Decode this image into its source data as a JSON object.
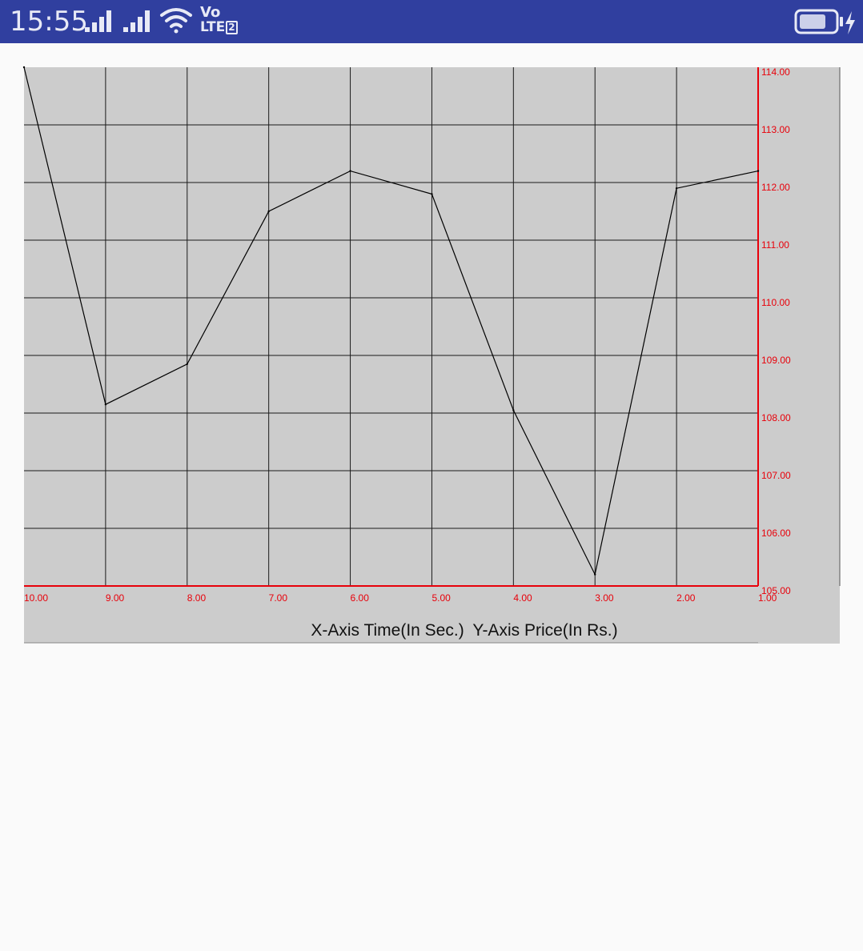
{
  "status_bar": {
    "time": "15:55",
    "network_label": "Vo",
    "network_type": "LTE",
    "sim_slot": "2",
    "icons": [
      "signal-icon",
      "signal-icon",
      "wifi-icon",
      "battery-charging-icon"
    ],
    "background_color": "#303f9f"
  },
  "chart_data": {
    "type": "line",
    "x_label_caption": "X-Axis Time(In Sec.)",
    "y_label_caption": "Y-Axis Price(In Rs.)",
    "x_ticks": [
      "10.00",
      "9.00",
      "8.00",
      "7.00",
      "6.00",
      "5.00",
      "4.00",
      "3.00",
      "2.00",
      "1.00"
    ],
    "y_ticks": [
      "105.00",
      "106.00",
      "107.00",
      "108.00",
      "109.00",
      "110.00",
      "111.00",
      "112.00",
      "113.00",
      "114.00"
    ],
    "xlim": [
      10,
      1
    ],
    "ylim": [
      105,
      114
    ],
    "x_reversed": true,
    "y_axis_position": "right",
    "grid": true,
    "series": [
      {
        "x": [
          10,
          9,
          8,
          7,
          6,
          5,
          4,
          3,
          2,
          1
        ],
        "y": [
          114.0,
          108.15,
          108.85,
          111.5,
          112.2,
          111.8,
          108.05,
          105.2,
          111.9,
          112.2
        ]
      }
    ],
    "colors": {
      "plot_bg": "#cccccc",
      "grid": "#1a1a1a",
      "axis": "#e8000a",
      "line": "#000000",
      "tick_text": "#e8000a"
    }
  }
}
